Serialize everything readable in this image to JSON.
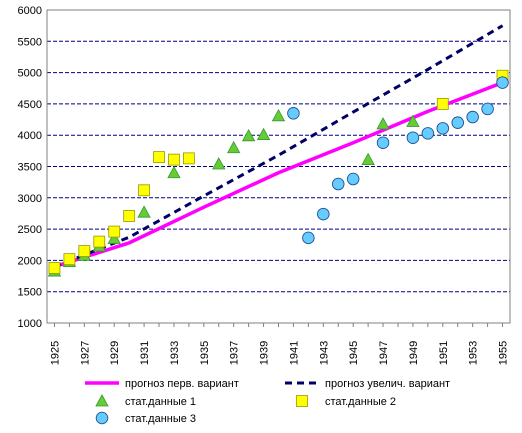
{
  "chart_data": {
    "type": "line",
    "x": [
      1925,
      1926,
      1927,
      1928,
      1929,
      1930,
      1931,
      1932,
      1933,
      1934,
      1935,
      1936,
      1937,
      1938,
      1939,
      1940,
      1941,
      1942,
      1943,
      1944,
      1945,
      1946,
      1947,
      1948,
      1949,
      1950,
      1951,
      1952,
      1953,
      1954,
      1955
    ],
    "xticks": [
      1925,
      1927,
      1929,
      1931,
      1933,
      1935,
      1937,
      1939,
      1941,
      1943,
      1945,
      1947,
      1949,
      1951,
      1953,
      1955
    ],
    "xlim": [
      1925,
      1955
    ],
    "ylim": [
      1000,
      6000
    ],
    "yticks": [
      1000,
      1500,
      2000,
      2500,
      3000,
      3500,
      4000,
      4500,
      5000,
      5500,
      6000
    ],
    "grid": "horizontal dashed",
    "legend_position": "bottom",
    "colors": {
      "forecast1": "#ff00ff",
      "forecast2": "#000066",
      "stat1": "#66cc33",
      "stat2": "#ffff00",
      "stat3": "#66ccff",
      "grid": "#000080"
    },
    "series": [
      {
        "name": "прогноз перв. вариант",
        "style": "line",
        "x": [
          1925,
          1930,
          1935,
          1940,
          1945,
          1950,
          1955
        ],
        "y": [
          1900,
          2280,
          2850,
          3400,
          3880,
          4380,
          4840
        ]
      },
      {
        "name": "прогноз увелич. вариант",
        "style": "dashed-line",
        "x": [
          1925,
          1930,
          1935,
          1940,
          1945,
          1950,
          1955
        ],
        "y": [
          1900,
          2370,
          3030,
          3680,
          4370,
          5050,
          5750
        ]
      },
      {
        "name": "стат.данные 1",
        "style": "triangle",
        "x": [
          1925,
          1926,
          1927,
          1928,
          1929,
          1931,
          1933,
          1936,
          1937,
          1938,
          1939,
          1940,
          1946,
          1947,
          1949
        ],
        "y": [
          1830,
          1980,
          2080,
          2230,
          2350,
          2770,
          3400,
          3540,
          3800,
          3990,
          4010,
          4310,
          3610,
          4180,
          4220
        ]
      },
      {
        "name": "стат.данные 2",
        "style": "square",
        "x": [
          1925,
          1926,
          1927,
          1928,
          1929,
          1930,
          1931,
          1932,
          1933,
          1934,
          1951,
          1955
        ],
        "y": [
          1880,
          2020,
          2150,
          2300,
          2460,
          2710,
          3120,
          3650,
          3610,
          3630,
          4500,
          4950
        ]
      },
      {
        "name": "стат.данные 3",
        "style": "circle",
        "x": [
          1941,
          1942,
          1943,
          1944,
          1945,
          1947,
          1949,
          1950,
          1951,
          1952,
          1953,
          1954,
          1955
        ],
        "y": [
          4350,
          2360,
          2740,
          3220,
          3300,
          3880,
          3960,
          4030,
          4110,
          4200,
          4290,
          4420,
          4840
        ]
      }
    ]
  }
}
